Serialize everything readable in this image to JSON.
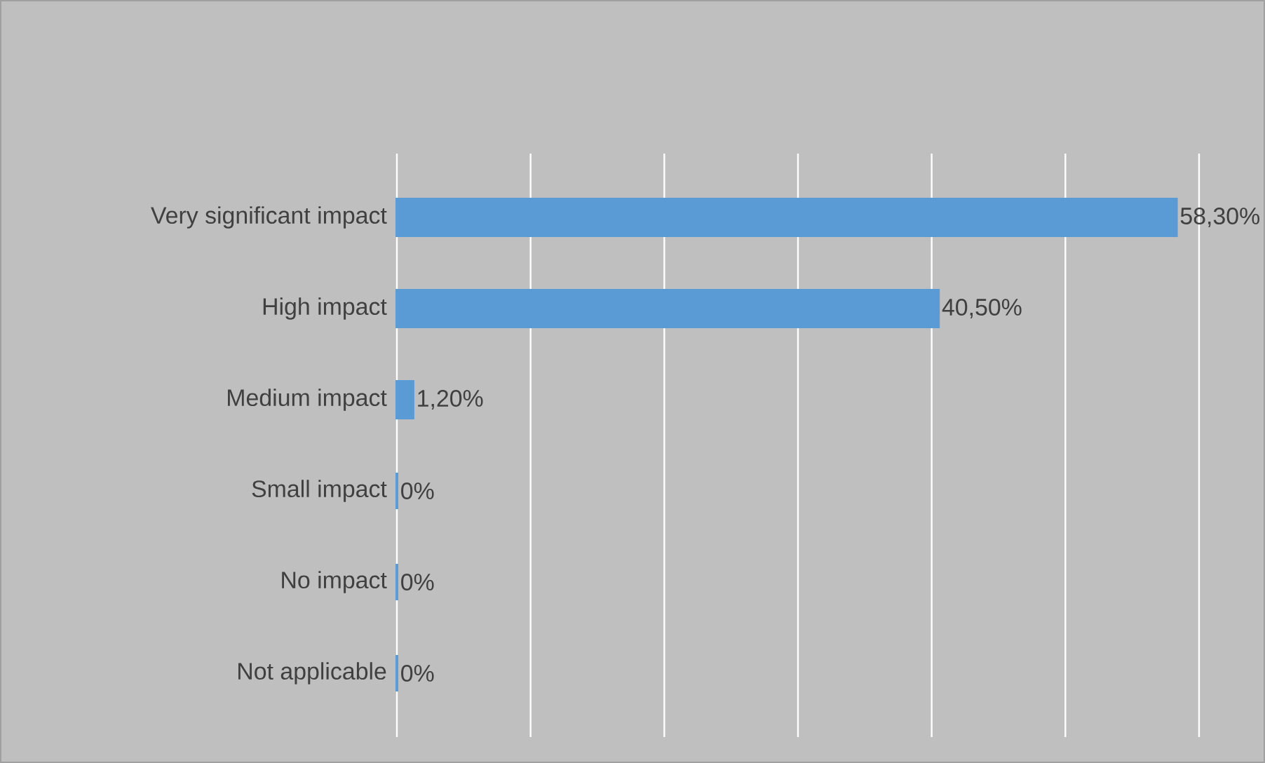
{
  "chart_data": {
    "type": "bar",
    "orientation": "horizontal",
    "categories": [
      "Very significant impact",
      "High impact",
      "Medium impact",
      "Small impact",
      "No impact",
      "Not applicable"
    ],
    "values": [
      58.3,
      40.5,
      1.2,
      0,
      0,
      0
    ],
    "value_labels": [
      "58,30%",
      "40,50%",
      "1,20%",
      "0%",
      "0%",
      "0%"
    ],
    "color": "#5b9bd5",
    "xlim": [
      0,
      60
    ],
    "xticks": [
      {
        "value": 0,
        "label": null
      },
      {
        "value": 10,
        "label": null
      },
      {
        "value": 20,
        "label": null
      },
      {
        "value": 30,
        "label": null
      },
      {
        "value": 40,
        "label": null
      },
      {
        "value": 50,
        "label": null
      },
      {
        "value": 60,
        "label": null
      }
    ],
    "grid": "x"
  }
}
